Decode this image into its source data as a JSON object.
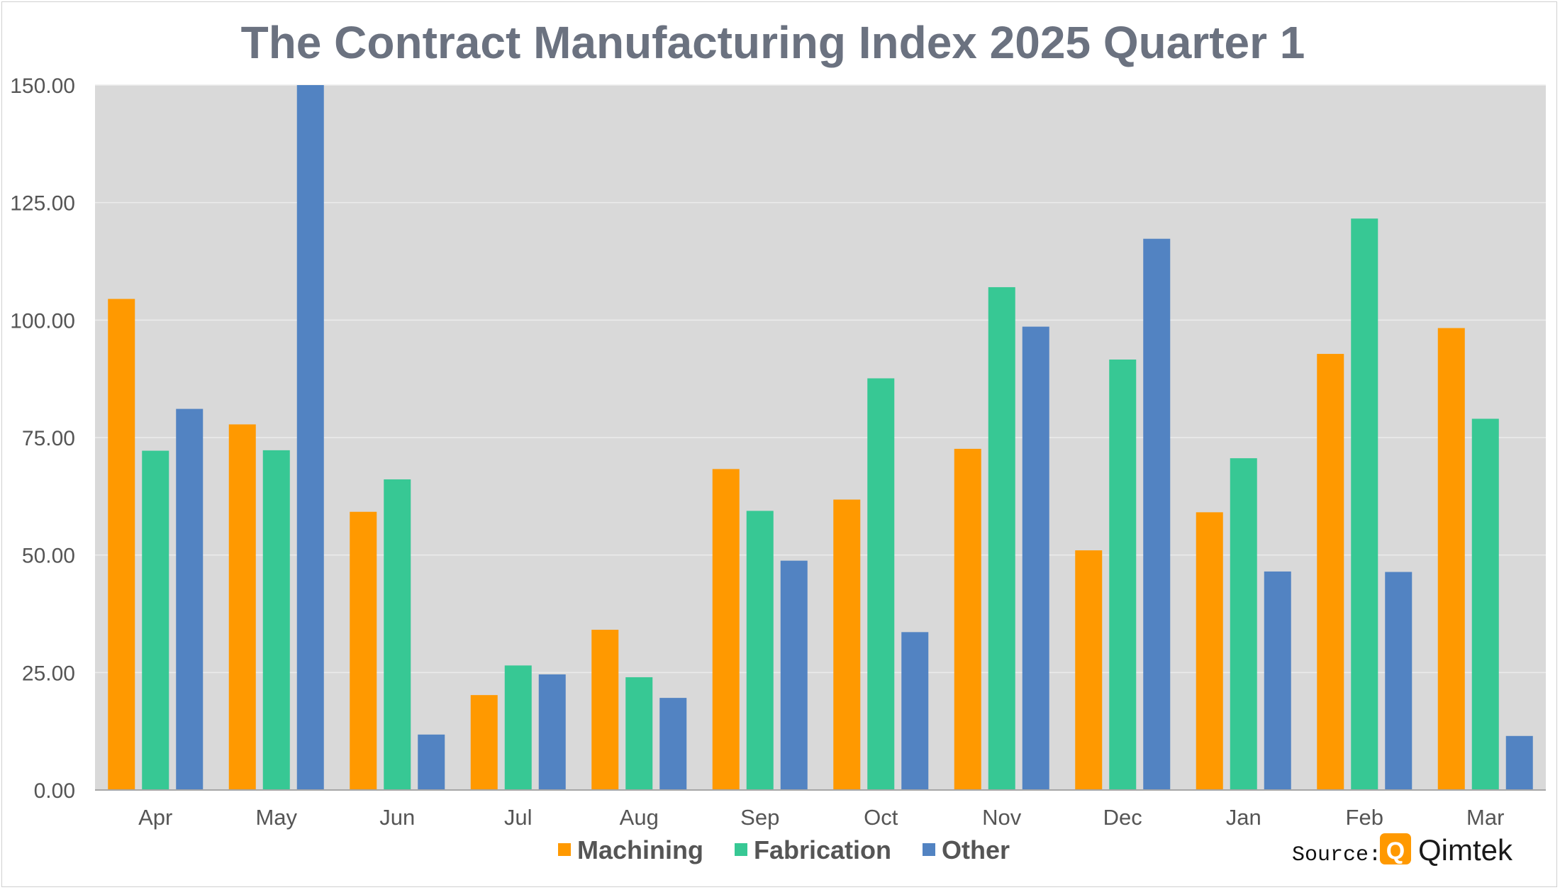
{
  "chart_data": {
    "type": "bar",
    "title": "The Contract Manufacturing Index 2025 Quarter 1",
    "categories": [
      "Apr",
      "May",
      "Jun",
      "Jul",
      "Aug",
      "Sep",
      "Oct",
      "Nov",
      "Dec",
      "Jan",
      "Feb",
      "Mar"
    ],
    "series": [
      {
        "name": "Machining",
        "color": "#ff9900",
        "values": [
          104.5,
          77.8,
          59.2,
          20.2,
          34.1,
          68.3,
          61.8,
          72.6,
          51.0,
          59.1,
          92.8,
          98.3
        ]
      },
      {
        "name": "Fabrication",
        "color": "#37c894",
        "values": [
          72.2,
          72.3,
          66.1,
          26.5,
          24.0,
          59.4,
          87.6,
          107.0,
          91.6,
          70.6,
          121.6,
          79.0
        ]
      },
      {
        "name": "Other",
        "color": "#5283c2",
        "values": [
          81.1,
          150.0,
          11.8,
          24.6,
          19.6,
          48.8,
          33.6,
          98.6,
          117.3,
          46.5,
          46.4,
          11.5
        ]
      }
    ],
    "ylim": [
      0,
      150
    ],
    "yticks": [
      "0.00",
      "25.00",
      "50.00",
      "75.00",
      "100.00",
      "125.00",
      "150.00"
    ],
    "grid": true,
    "legend_position": "bottom",
    "xlabel": "",
    "ylabel": ""
  },
  "source": {
    "label": "Source:",
    "brand": "Qimtek",
    "logo_letter": "Q",
    "logo_color": "#ff9900"
  }
}
